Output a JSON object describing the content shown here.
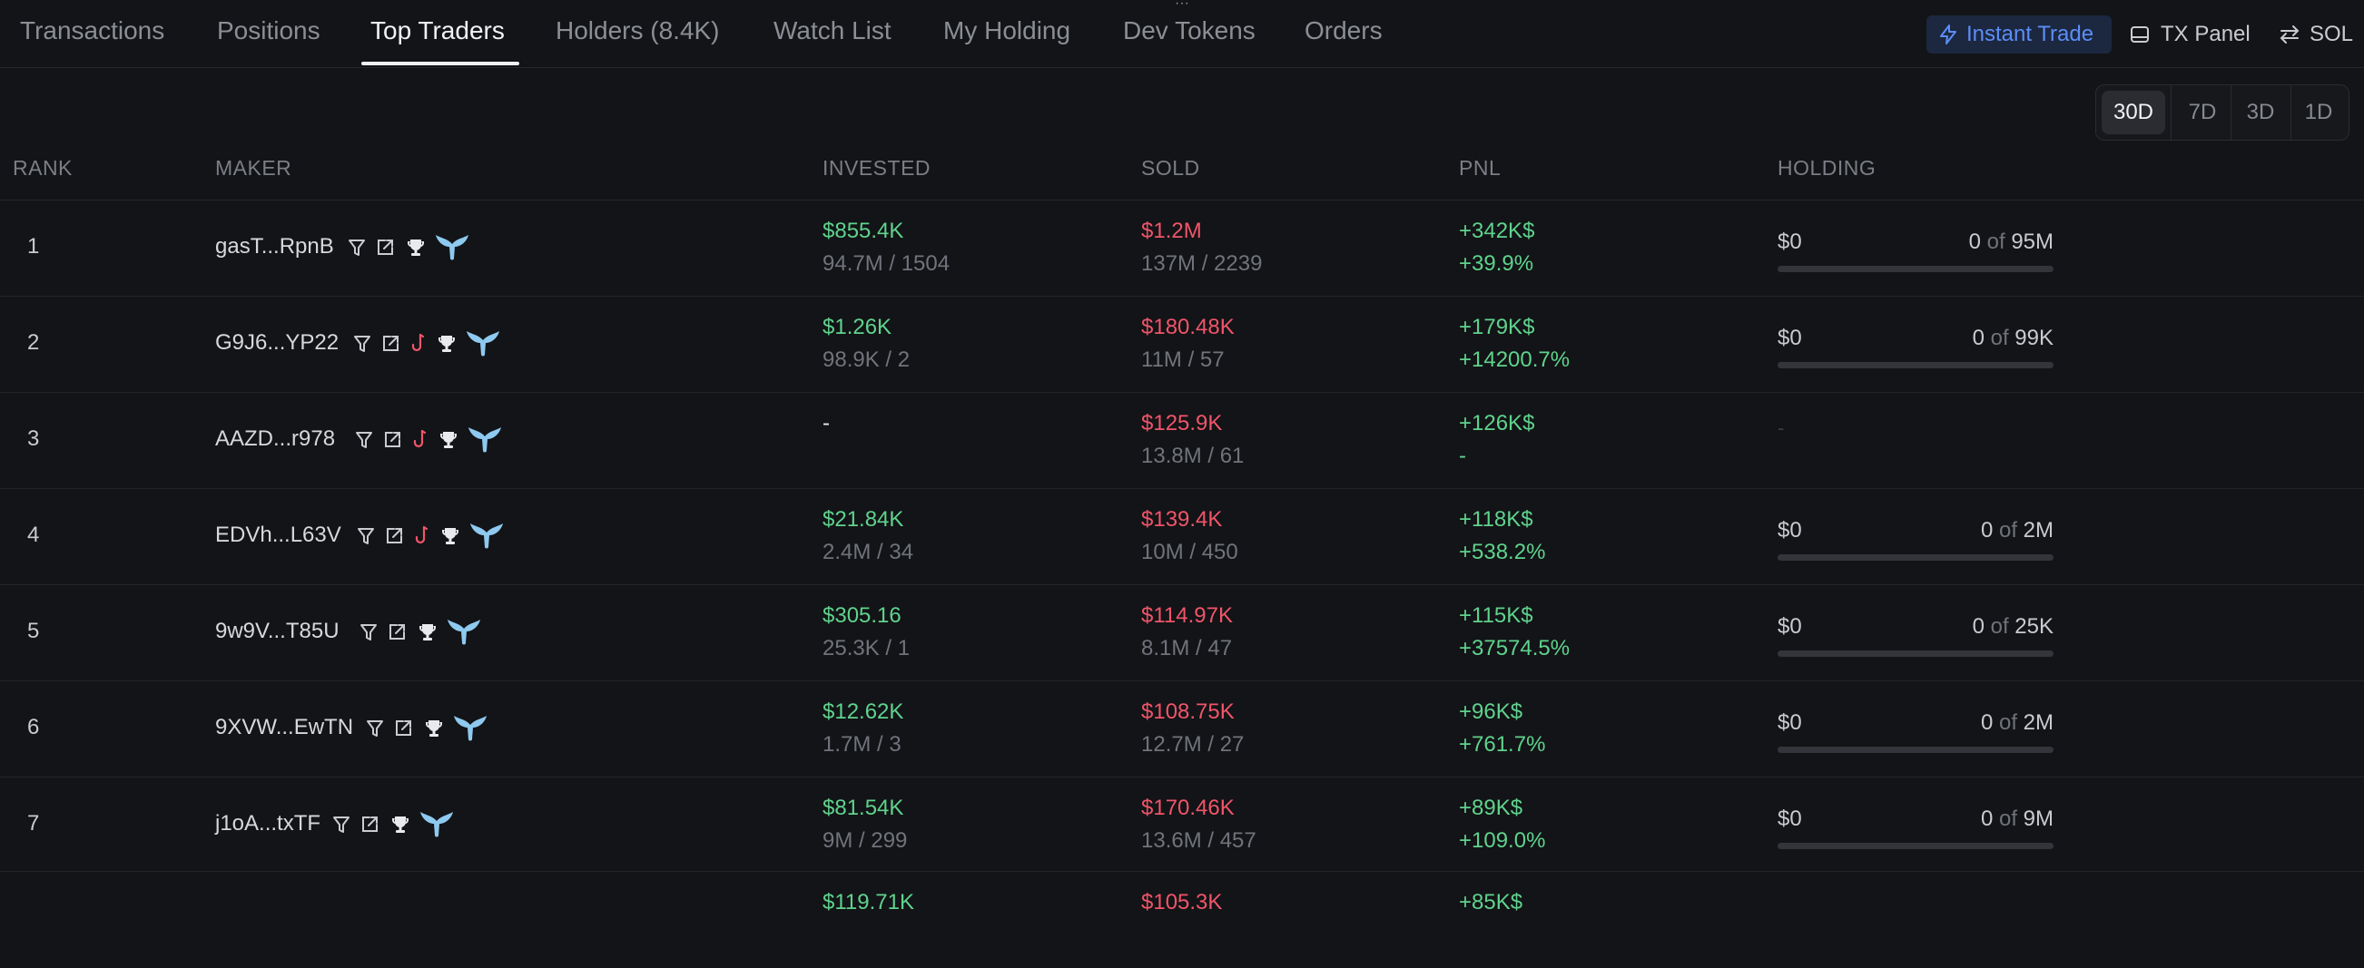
{
  "tabs": [
    {
      "label": "Transactions"
    },
    {
      "label": "Positions"
    },
    {
      "label": "Top Traders"
    },
    {
      "label": "Holders (8.4K)"
    },
    {
      "label": "Watch List"
    },
    {
      "label": "My Holding"
    },
    {
      "label": "Dev Tokens"
    },
    {
      "label": "Orders"
    }
  ],
  "active_tab": "Top Traders",
  "toolbar": {
    "instant_trade": "Instant Trade",
    "tx_panel": "TX Panel",
    "currency": "SOL"
  },
  "periods": [
    "30D",
    "7D",
    "3D",
    "1D"
  ],
  "active_period": "30D",
  "columns": {
    "rank": "RANK",
    "maker": "MAKER",
    "invested": "INVESTED",
    "sold": "SOLD",
    "pnl": "PNL",
    "holding": "HOLDING"
  },
  "rows": [
    {
      "rank": "1",
      "maker": "gasT...RpnB",
      "hook": false,
      "invested": "$855.4K",
      "invested_sub": "94.7M / 1504",
      "sold": "$1.2M",
      "sold_sub": "137M / 2239",
      "pnl": "+342K$",
      "pnl_pct": "+39.9%",
      "holding_usd": "$0",
      "holding_amount": "0",
      "holding_of": "of",
      "holding_total": "95M"
    },
    {
      "rank": "2",
      "maker": "G9J6...YP22",
      "hook": true,
      "invested": "$1.26K",
      "invested_sub": "98.9K / 2",
      "sold": "$180.48K",
      "sold_sub": "11M / 57",
      "pnl": "+179K$",
      "pnl_pct": "+14200.7%",
      "holding_usd": "$0",
      "holding_amount": "0",
      "holding_of": "of",
      "holding_total": "99K"
    },
    {
      "rank": "3",
      "maker": "AAZD...r978",
      "hook": true,
      "invested": "-",
      "invested_sub": "",
      "sold": "$125.9K",
      "sold_sub": "13.8M / 61",
      "pnl": "+126K$",
      "pnl_pct": "-",
      "holding_dash": "-"
    },
    {
      "rank": "4",
      "maker": "EDVh...L63V",
      "hook": true,
      "invested": "$21.84K",
      "invested_sub": "2.4M / 34",
      "sold": "$139.4K",
      "sold_sub": "10M / 450",
      "pnl": "+118K$",
      "pnl_pct": "+538.2%",
      "holding_usd": "$0",
      "holding_amount": "0",
      "holding_of": "of",
      "holding_total": "2M"
    },
    {
      "rank": "5",
      "maker": "9w9V...T85U",
      "hook": false,
      "invested": "$305.16",
      "invested_sub": "25.3K / 1",
      "sold": "$114.97K",
      "sold_sub": "8.1M / 47",
      "pnl": "+115K$",
      "pnl_pct": "+37574.5%",
      "holding_usd": "$0",
      "holding_amount": "0",
      "holding_of": "of",
      "holding_total": "25K"
    },
    {
      "rank": "6",
      "maker": "9XVW...EwTN",
      "hook": false,
      "invested": "$12.62K",
      "invested_sub": "1.7M / 3",
      "sold": "$108.75K",
      "sold_sub": "12.7M / 27",
      "pnl": "+96K$",
      "pnl_pct": "+761.7%",
      "holding_usd": "$0",
      "holding_amount": "0",
      "holding_of": "of",
      "holding_total": "2M"
    },
    {
      "rank": "7",
      "maker": "j1oA...txTF",
      "hook": false,
      "invested": "$81.54K",
      "invested_sub": "9M / 299",
      "sold": "$170.46K",
      "sold_sub": "13.6M / 457",
      "pnl": "+89K$",
      "pnl_pct": "+109.0%",
      "holding_usd": "$0",
      "holding_amount": "0",
      "holding_of": "of",
      "holding_total": "9M"
    }
  ],
  "partial_row": {
    "invested": "$119.71K",
    "sold": "$105.3K",
    "pnl": "+85K$"
  },
  "colors": {
    "background": "#131417",
    "positive": "#5fd38d",
    "negative": "#f0556a",
    "accent": "#5b8ef6",
    "whale": "#8ec9f0"
  },
  "icons": [
    "bolt-icon",
    "panel-icon",
    "swap-icon",
    "filter-icon",
    "external-link-icon",
    "hook-icon",
    "trophy-icon",
    "whale-tail-icon"
  ]
}
